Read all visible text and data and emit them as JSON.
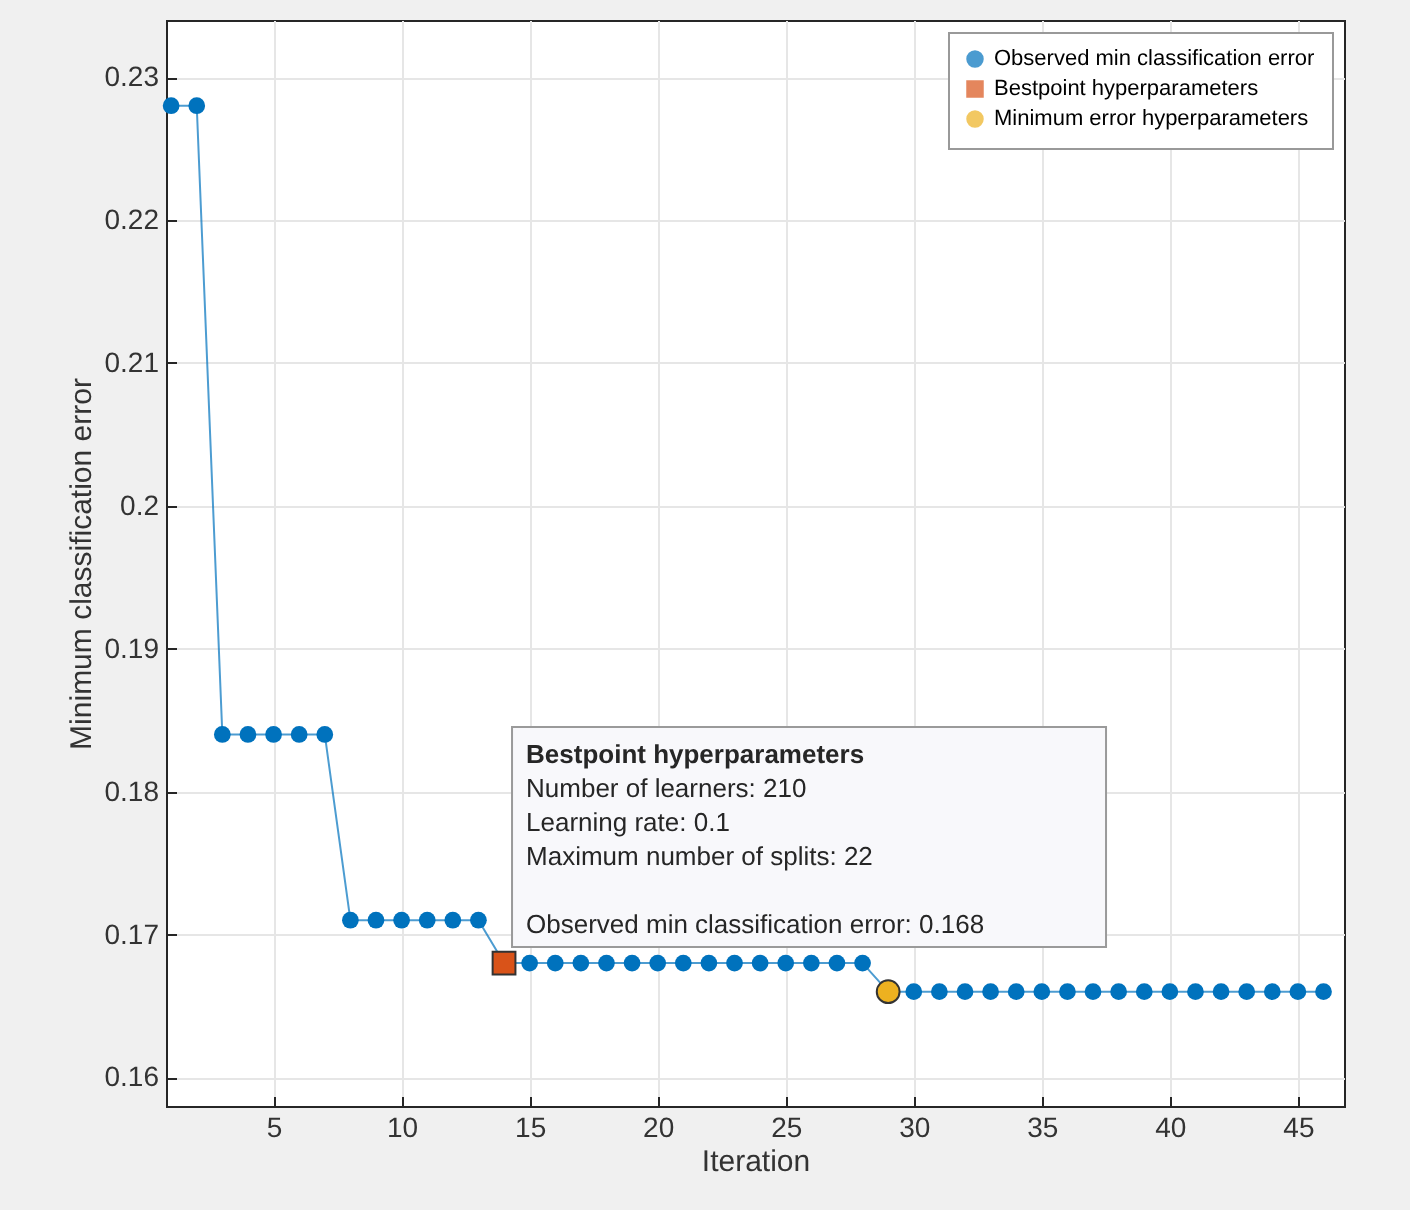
{
  "chart_data": {
    "type": "line",
    "xlabel": "Iteration",
    "ylabel": "Minimum classification error",
    "xlim": [
      0.8,
      46.8
    ],
    "xticks": [
      5,
      10,
      15,
      20,
      25,
      30,
      35,
      40,
      45
    ],
    "ylim": [
      0.158,
      0.234
    ],
    "yticks": [
      0.16,
      0.17,
      0.18,
      0.19,
      0.2,
      0.21,
      0.22,
      0.23
    ],
    "grid": true,
    "legend": "top right",
    "series": [
      {
        "name": "Observed min classification error",
        "marker": "circle",
        "color": "#0072bd",
        "x": [
          1,
          2,
          3,
          4,
          5,
          6,
          7,
          8,
          9,
          10,
          11,
          12,
          13,
          14,
          15,
          16,
          17,
          18,
          19,
          20,
          21,
          22,
          23,
          24,
          25,
          26,
          27,
          28,
          29,
          30,
          31,
          32,
          33,
          34,
          35,
          36,
          37,
          38,
          39,
          40,
          41,
          42,
          43,
          44,
          45,
          46
        ],
        "values": [
          0.228,
          0.228,
          0.184,
          0.184,
          0.184,
          0.184,
          0.184,
          0.171,
          0.171,
          0.171,
          0.171,
          0.171,
          0.171,
          0.168,
          0.168,
          0.168,
          0.168,
          0.168,
          0.168,
          0.168,
          0.168,
          0.168,
          0.168,
          0.168,
          0.168,
          0.168,
          0.168,
          0.168,
          0.166,
          0.166,
          0.166,
          0.166,
          0.166,
          0.166,
          0.166,
          0.166,
          0.166,
          0.166,
          0.166,
          0.166,
          0.166,
          0.166,
          0.166,
          0.166,
          0.166,
          0.166
        ]
      },
      {
        "name": "Bestpoint hyperparameters",
        "type": "scatter",
        "marker": "square",
        "color": "#d95319",
        "x": [
          14
        ],
        "values": [
          0.168
        ]
      },
      {
        "name": "Minimum error hyperparameters",
        "type": "scatter",
        "marker": "circle",
        "color": "#edb120",
        "x": [
          29
        ],
        "values": [
          0.166
        ]
      }
    ],
    "annotations": [
      "Bestpoint hyperparameters",
      "Number of learners: 210\nLearning rate: 0.1\nMaximum number of splits: 22",
      "Observed min classification error: 0.168"
    ]
  }
}
